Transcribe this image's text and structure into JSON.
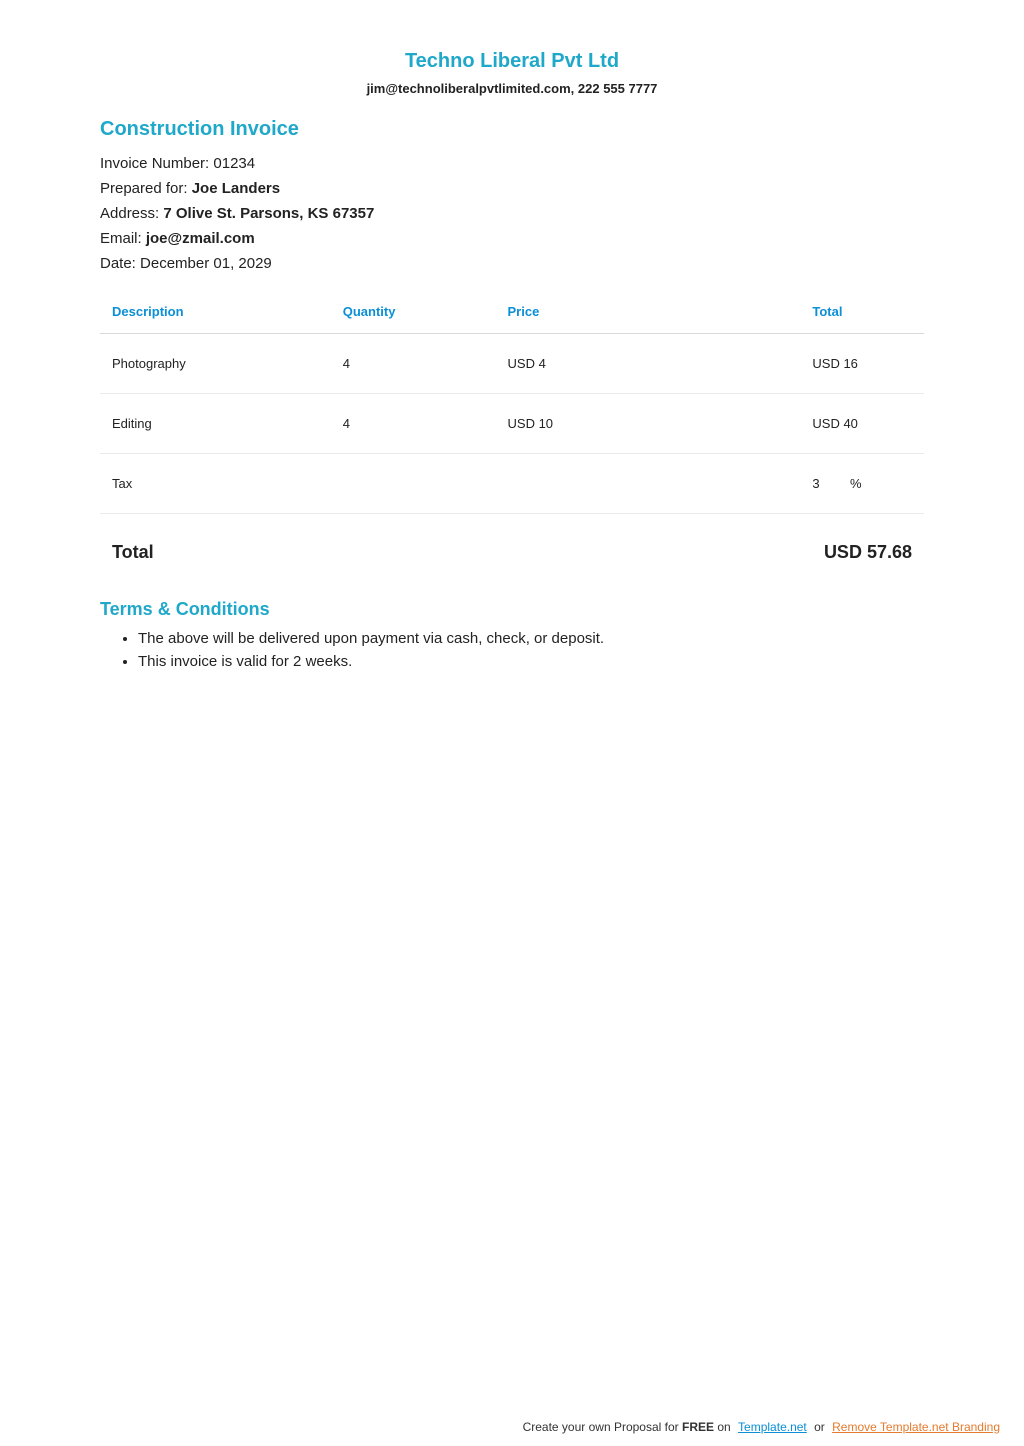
{
  "company": {
    "name": "Techno Liberal Pvt Ltd",
    "contact": "jim@technoliberalpvtlimited.com, 222 555 7777"
  },
  "invoice": {
    "title": "Construction Invoice",
    "number_label": "Invoice Number: ",
    "number_value": "01234",
    "prepared_label": "Prepared for: ",
    "prepared_value": "Joe Landers",
    "address_label": "Address: ",
    "address_value": "7 Olive St. Parsons, KS 67357",
    "email_label": "Email: ",
    "email_value": "joe@zmail.com",
    "date_label": "Date: ",
    "date_value": "December 01, 2029"
  },
  "table": {
    "headers": {
      "description": "Description",
      "quantity": "Quantity",
      "price": "Price",
      "total": "Total"
    },
    "rows": [
      {
        "description": "Photography",
        "quantity": "4",
        "price": "USD 4",
        "total": "USD 16"
      },
      {
        "description": "Editing",
        "quantity": "4",
        "price": "USD 10",
        "total": "USD 40"
      }
    ],
    "tax": {
      "label": "Tax",
      "value": "3",
      "suffix": "%"
    },
    "grand": {
      "label": "Total",
      "value": "USD 57.68"
    }
  },
  "terms": {
    "title": "Terms & Conditions",
    "items": [
      "The above will be delivered upon payment via cash, check, or deposit.",
      "This invoice is valid for 2 weeks."
    ]
  },
  "footer": {
    "lead": "Create your own Proposal for ",
    "free": "FREE",
    "on": " on",
    "link1": "Template.net",
    "or": " or ",
    "link2": "Remove Template.net Branding"
  },
  "colors": {
    "accent": "#1fa8c9",
    "header_text": "#0b8fd6",
    "link_orange": "#e47b2e",
    "border": "#eaeaea"
  }
}
